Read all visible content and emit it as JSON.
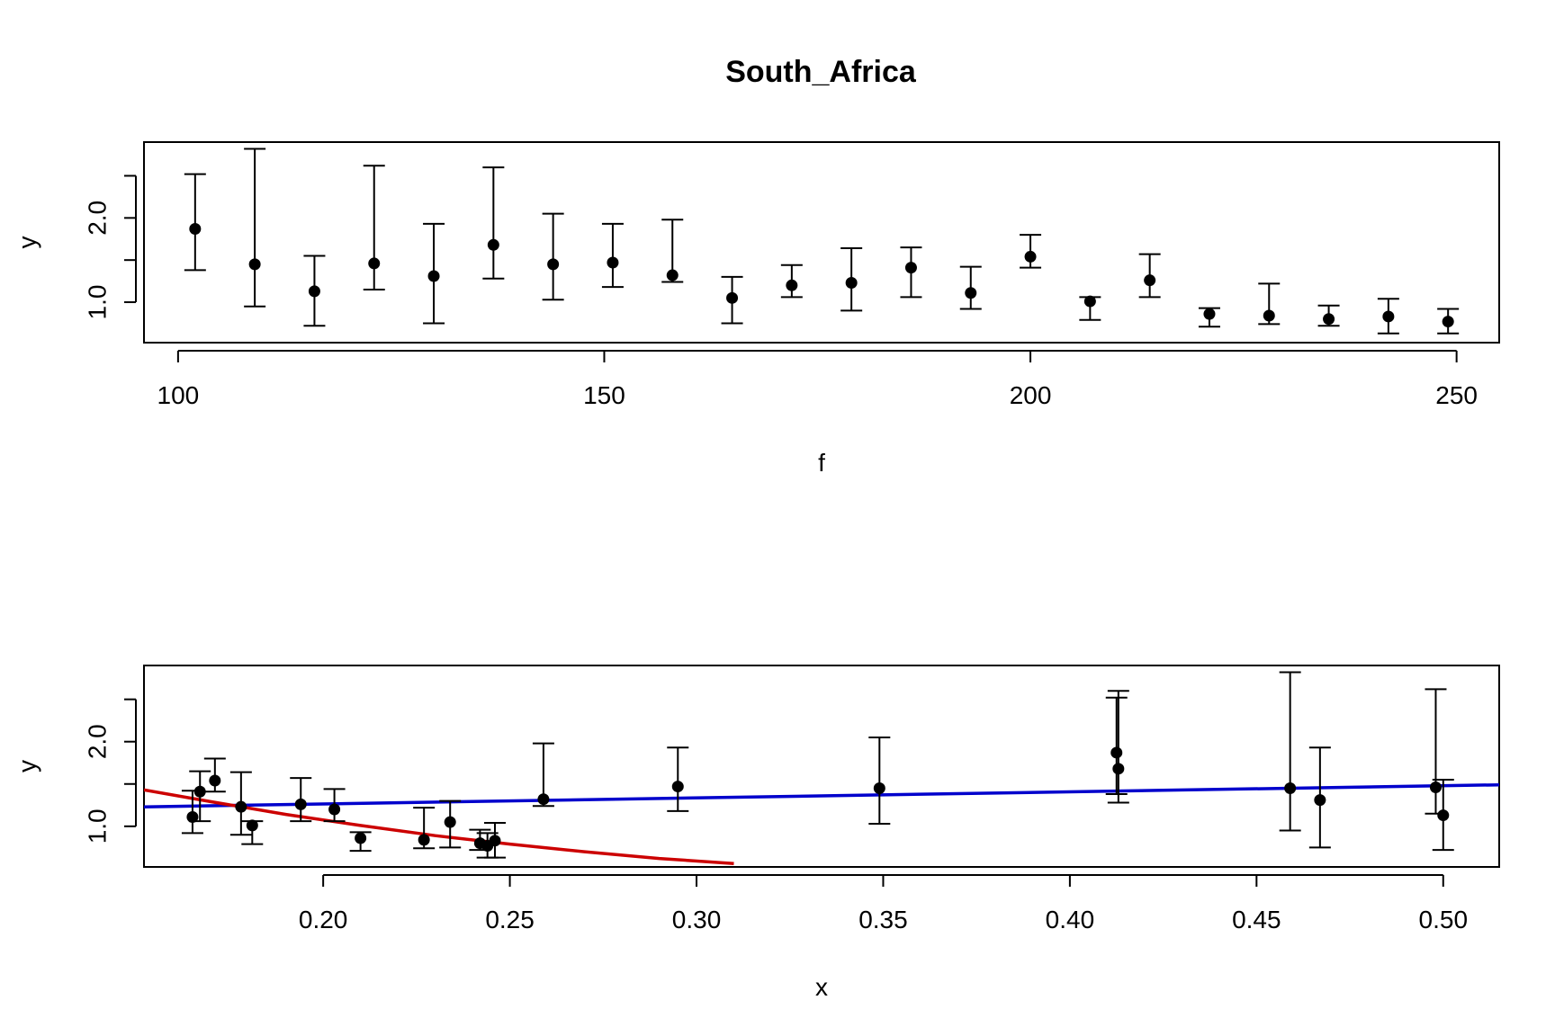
{
  "title": "South_Africa",
  "chart_data": [
    {
      "type": "scatter",
      "xlabel": "f",
      "ylabel": "y",
      "xlim": [
        96,
        255
      ],
      "ylim": [
        0.52,
        2.9
      ],
      "xticks": [
        100,
        150,
        200,
        250
      ],
      "xtick_labels": [
        "100",
        "150",
        "200",
        "250"
      ],
      "yticks": [
        1.0,
        1.5,
        2.0,
        2.5
      ],
      "ytick_labels": [
        "1.0",
        "",
        "2.0",
        ""
      ],
      "grid": false,
      "points": [
        {
          "x": 102,
          "y": 1.87,
          "lo": 1.38,
          "hi": 2.52
        },
        {
          "x": 109,
          "y": 1.45,
          "lo": 0.95,
          "hi": 2.82
        },
        {
          "x": 116,
          "y": 1.13,
          "lo": 0.72,
          "hi": 1.55
        },
        {
          "x": 123,
          "y": 1.46,
          "lo": 1.15,
          "hi": 2.62
        },
        {
          "x": 130,
          "y": 1.31,
          "lo": 0.75,
          "hi": 1.93
        },
        {
          "x": 137,
          "y": 1.68,
          "lo": 1.28,
          "hi": 2.6
        },
        {
          "x": 144,
          "y": 1.45,
          "lo": 1.03,
          "hi": 2.05
        },
        {
          "x": 151,
          "y": 1.47,
          "lo": 1.18,
          "hi": 1.93
        },
        {
          "x": 158,
          "y": 1.32,
          "lo": 1.24,
          "hi": 1.98
        },
        {
          "x": 165,
          "y": 1.05,
          "lo": 0.75,
          "hi": 1.3
        },
        {
          "x": 172,
          "y": 1.2,
          "lo": 1.06,
          "hi": 1.44
        },
        {
          "x": 179,
          "y": 1.23,
          "lo": 0.9,
          "hi": 1.64
        },
        {
          "x": 186,
          "y": 1.41,
          "lo": 1.06,
          "hi": 1.65
        },
        {
          "x": 193,
          "y": 1.11,
          "lo": 0.92,
          "hi": 1.42
        },
        {
          "x": 200,
          "y": 1.54,
          "lo": 1.41,
          "hi": 1.8
        },
        {
          "x": 207,
          "y": 1.01,
          "lo": 0.79,
          "hi": 1.06
        },
        {
          "x": 214,
          "y": 1.26,
          "lo": 1.06,
          "hi": 1.57
        },
        {
          "x": 221,
          "y": 0.86,
          "lo": 0.71,
          "hi": 0.93
        },
        {
          "x": 228,
          "y": 0.84,
          "lo": 0.74,
          "hi": 1.22
        },
        {
          "x": 235,
          "y": 0.8,
          "lo": 0.72,
          "hi": 0.96
        },
        {
          "x": 242,
          "y": 0.83,
          "lo": 0.63,
          "hi": 1.04
        },
        {
          "x": 249,
          "y": 0.77,
          "lo": 0.63,
          "hi": 0.92
        }
      ]
    },
    {
      "type": "scatter",
      "xlabel": "x",
      "ylabel": "y",
      "xlim": [
        0.152,
        0.515
      ],
      "ylim": [
        0.52,
        2.9
      ],
      "xticks": [
        0.2,
        0.25,
        0.3,
        0.35,
        0.4,
        0.45,
        0.5
      ],
      "xtick_labels": [
        "0.20",
        "0.25",
        "0.30",
        "0.35",
        "0.40",
        "0.45",
        "0.50"
      ],
      "yticks": [
        1.0,
        1.5,
        2.0,
        2.5
      ],
      "ytick_labels": [
        "1.0",
        "",
        "2.0",
        ""
      ],
      "grid": false,
      "points": [
        {
          "x": 0.165,
          "y": 1.11,
          "lo": 0.92,
          "hi": 1.42
        },
        {
          "x": 0.167,
          "y": 1.41,
          "lo": 1.06,
          "hi": 1.65
        },
        {
          "x": 0.171,
          "y": 1.54,
          "lo": 1.41,
          "hi": 1.8
        },
        {
          "x": 0.178,
          "y": 1.23,
          "lo": 0.9,
          "hi": 1.64
        },
        {
          "x": 0.181,
          "y": 1.01,
          "lo": 0.79,
          "hi": 1.06
        },
        {
          "x": 0.194,
          "y": 1.26,
          "lo": 1.06,
          "hi": 1.57
        },
        {
          "x": 0.203,
          "y": 1.2,
          "lo": 1.06,
          "hi": 1.44
        },
        {
          "x": 0.21,
          "y": 0.86,
          "lo": 0.71,
          "hi": 0.93
        },
        {
          "x": 0.227,
          "y": 0.84,
          "lo": 0.74,
          "hi": 1.22
        },
        {
          "x": 0.234,
          "y": 1.05,
          "lo": 0.75,
          "hi": 1.3
        },
        {
          "x": 0.242,
          "y": 0.8,
          "lo": 0.72,
          "hi": 0.96
        },
        {
          "x": 0.244,
          "y": 0.77,
          "lo": 0.63,
          "hi": 0.92
        },
        {
          "x": 0.246,
          "y": 0.83,
          "lo": 0.63,
          "hi": 1.04
        },
        {
          "x": 0.259,
          "y": 1.32,
          "lo": 1.24,
          "hi": 1.98
        },
        {
          "x": 0.295,
          "y": 1.47,
          "lo": 1.18,
          "hi": 1.93
        },
        {
          "x": 0.349,
          "y": 1.45,
          "lo": 1.03,
          "hi": 2.05
        },
        {
          "x": 0.4125,
          "y": 1.87,
          "lo": 1.38,
          "hi": 2.52
        },
        {
          "x": 0.413,
          "y": 1.68,
          "lo": 1.28,
          "hi": 2.6
        },
        {
          "x": 0.459,
          "y": 1.45,
          "lo": 0.95,
          "hi": 2.82
        },
        {
          "x": 0.467,
          "y": 1.31,
          "lo": 0.75,
          "hi": 1.93
        },
        {
          "x": 0.498,
          "y": 1.46,
          "lo": 1.15,
          "hi": 2.62
        },
        {
          "x": 0.5,
          "y": 1.13,
          "lo": 0.72,
          "hi": 1.55
        }
      ],
      "lines": [
        {
          "color": "#0000cc",
          "points": [
            [
              0.152,
              1.23
            ],
            [
              0.515,
              1.49
            ]
          ]
        },
        {
          "color": "#cc0000",
          "points": [
            [
              0.152,
              1.43
            ],
            [
              0.17,
              1.29
            ],
            [
              0.19,
              1.14
            ],
            [
              0.21,
              1.01
            ],
            [
              0.23,
              0.89
            ],
            [
              0.25,
              0.79
            ],
            [
              0.27,
              0.7
            ],
            [
              0.29,
              0.62
            ],
            [
              0.31,
              0.56
            ]
          ]
        }
      ]
    }
  ],
  "colors": {
    "fit_blue": "#0000cc",
    "fit_red": "#cc0000"
  }
}
